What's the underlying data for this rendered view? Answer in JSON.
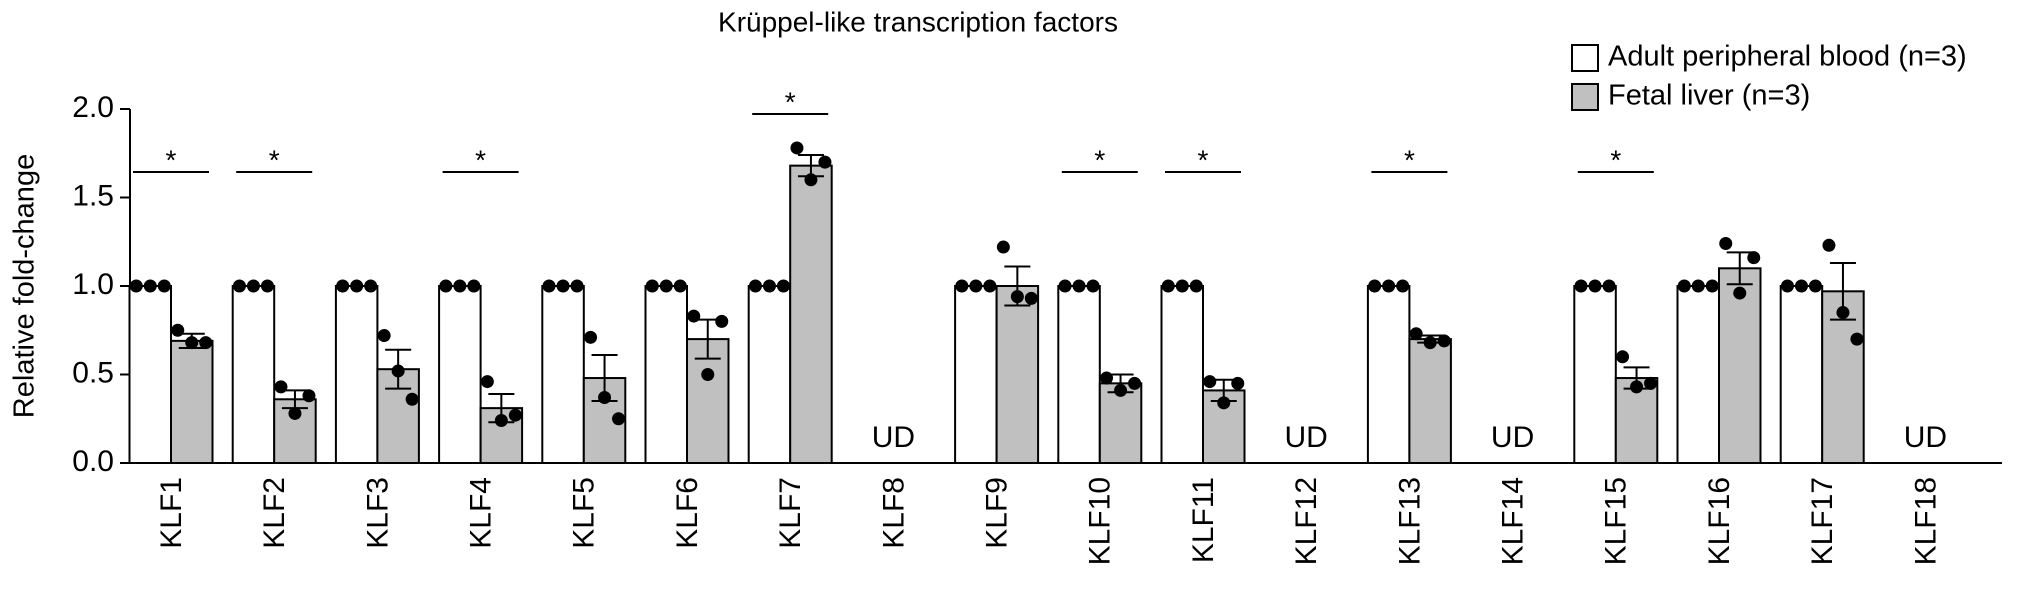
{
  "chart_data": {
    "type": "bar",
    "title": "Krüppel-like transcription factors",
    "y_label": "Relative fold-change",
    "categories": [
      "KLF1",
      "KLF2",
      "KLF3",
      "KLF4",
      "KLF5",
      "KLF6",
      "KLF7",
      "KLF8",
      "KLF9",
      "KLF10",
      "KLF11",
      "KLF12",
      "KLF13",
      "KLF14",
      "KLF15",
      "KLF16",
      "KLF17",
      "KLF18"
    ],
    "series": [
      {
        "name": "Adult peripheral blood (n=3)",
        "color": "#ffffff",
        "values": [
          1,
          1,
          1,
          1,
          1,
          1,
          1,
          null,
          1,
          1,
          1,
          null,
          1,
          null,
          1,
          1,
          1,
          null
        ],
        "points": [
          [
            1,
            1,
            1
          ],
          [
            1,
            1,
            1
          ],
          [
            1,
            1,
            1
          ],
          [
            1,
            1,
            1
          ],
          [
            1,
            1,
            1
          ],
          [
            1,
            1,
            1
          ],
          [
            1,
            1,
            1
          ],
          null,
          [
            1,
            1,
            1
          ],
          [
            1,
            1,
            1
          ],
          [
            1,
            1,
            1
          ],
          null,
          [
            1,
            1,
            1
          ],
          null,
          [
            1,
            1,
            1
          ],
          [
            1,
            1,
            1
          ],
          [
            1,
            1,
            1
          ],
          null
        ]
      },
      {
        "name": "Fetal liver (n=3)",
        "color": "#c0c0c0",
        "values": [
          0.69,
          0.36,
          0.53,
          0.31,
          0.48,
          0.7,
          1.68,
          null,
          1.0,
          0.45,
          0.41,
          null,
          0.7,
          null,
          0.48,
          1.1,
          0.97,
          null
        ],
        "errors": [
          0.04,
          0.05,
          0.11,
          0.08,
          0.13,
          0.11,
          0.06,
          null,
          0.11,
          0.05,
          0.06,
          null,
          0.02,
          null,
          0.06,
          0.09,
          0.16,
          null
        ],
        "value_labels": [
          null,
          null,
          null,
          null,
          null,
          null,
          null,
          "UD",
          null,
          null,
          null,
          "UD",
          null,
          "UD",
          null,
          null,
          null,
          "UD"
        ],
        "points": [
          [
            0.75,
            0.68,
            0.68
          ],
          [
            0.43,
            0.28,
            0.38
          ],
          [
            0.72,
            0.52,
            0.36
          ],
          [
            0.46,
            0.24,
            0.27
          ],
          [
            0.71,
            0.37,
            0.25
          ],
          [
            0.83,
            0.5,
            0.8
          ],
          [
            1.78,
            1.6,
            1.7
          ],
          null,
          [
            1.22,
            0.94,
            0.93
          ],
          [
            0.48,
            0.41,
            0.45
          ],
          [
            0.46,
            0.34,
            0.45
          ],
          null,
          [
            0.73,
            0.68,
            0.69
          ],
          null,
          [
            0.6,
            0.43,
            0.45
          ],
          [
            1.24,
            0.96,
            1.16
          ],
          [
            1.23,
            0.85,
            0.7
          ],
          null
        ]
      }
    ],
    "significance": [
      {
        "category": "KLF1",
        "label": "*"
      },
      {
        "category": "KLF2",
        "label": "*"
      },
      {
        "category": "KLF4",
        "label": "*"
      },
      {
        "category": "KLF7",
        "label": "*"
      },
      {
        "category": "KLF10",
        "label": "*"
      },
      {
        "category": "KLF11",
        "label": "*"
      },
      {
        "category": "KLF13",
        "label": "*"
      },
      {
        "category": "KLF15",
        "label": "*"
      }
    ],
    "ylim": [
      0,
      2
    ],
    "yticks": [
      {
        "value": 0,
        "label": "0.0"
      },
      0.5,
      {
        "value": 1,
        "label": "1.0"
      },
      1.5,
      {
        "value": 2,
        "label": "2.0"
      }
    ],
    "legend": "top-right"
  }
}
